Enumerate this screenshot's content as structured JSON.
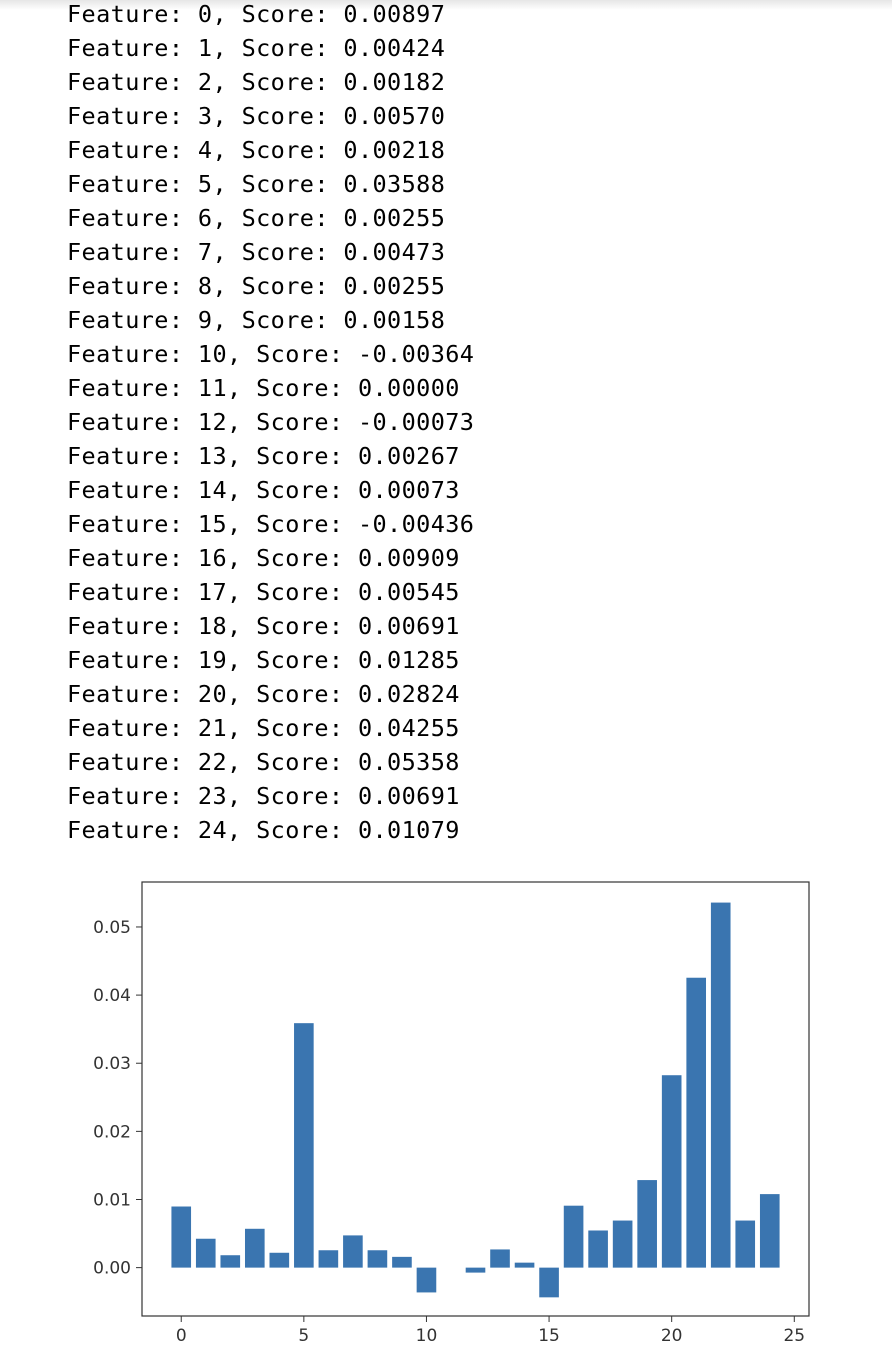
{
  "output": {
    "lines": [
      "Feature: 0, Score: 0.00897",
      "Feature: 1, Score: 0.00424",
      "Feature: 2, Score: 0.00182",
      "Feature: 3, Score: 0.00570",
      "Feature: 4, Score: 0.00218",
      "Feature: 5, Score: 0.03588",
      "Feature: 6, Score: 0.00255",
      "Feature: 7, Score: 0.00473",
      "Feature: 8, Score: 0.00255",
      "Feature: 9, Score: 0.00158",
      "Feature: 10, Score: -0.00364",
      "Feature: 11, Score: 0.00000",
      "Feature: 12, Score: -0.00073",
      "Feature: 13, Score: 0.00267",
      "Feature: 14, Score: 0.00073",
      "Feature: 15, Score: -0.00436",
      "Feature: 16, Score: 0.00909",
      "Feature: 17, Score: 0.00545",
      "Feature: 18, Score: 0.00691",
      "Feature: 19, Score: 0.01285",
      "Feature: 20, Score: 0.02824",
      "Feature: 21, Score: 0.04255",
      "Feature: 22, Score: 0.05358",
      "Feature: 23, Score: 0.00691",
      "Feature: 24, Score: 0.01079"
    ]
  },
  "chart_data": {
    "type": "bar",
    "title": "",
    "xlabel": "",
    "ylabel": "",
    "categories": [
      0,
      1,
      2,
      3,
      4,
      5,
      6,
      7,
      8,
      9,
      10,
      11,
      12,
      13,
      14,
      15,
      16,
      17,
      18,
      19,
      20,
      21,
      22,
      23,
      24
    ],
    "values": [
      0.00897,
      0.00424,
      0.00182,
      0.0057,
      0.00218,
      0.03588,
      0.00255,
      0.00473,
      0.00255,
      0.00158,
      -0.00364,
      0.0,
      -0.00073,
      0.00267,
      0.00073,
      -0.00436,
      0.00909,
      0.00545,
      0.00691,
      0.01285,
      0.02824,
      0.04255,
      0.05358,
      0.00691,
      0.01079
    ],
    "xlim": [
      -1.6,
      25.6
    ],
    "ylim": [
      -0.0071,
      0.0566
    ],
    "xticks": [
      0,
      5,
      10,
      15,
      20,
      25
    ],
    "xtick_labels": [
      "0",
      "5",
      "10",
      "15",
      "20",
      "25"
    ],
    "yticks": [
      0.0,
      0.01,
      0.02,
      0.03,
      0.04,
      0.05
    ],
    "ytick_labels": [
      "0.00",
      "0.01",
      "0.02",
      "0.03",
      "0.04",
      "0.05"
    ],
    "bar_width": 0.8,
    "grid": false,
    "legend": "none",
    "bar_color": "#3a75b0",
    "axis_color": "#333333"
  }
}
